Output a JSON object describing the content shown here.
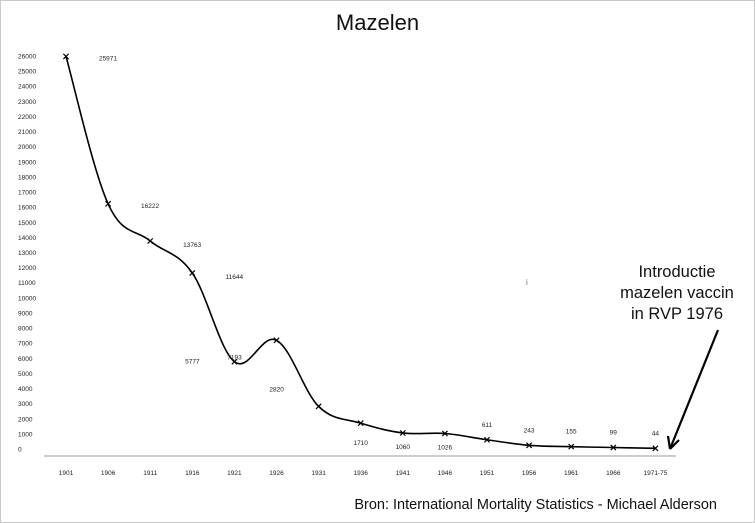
{
  "chart_data": {
    "type": "line",
    "title": "Mazelen",
    "categories": [
      "1901",
      "1906",
      "1911",
      "1916",
      "1921",
      "1926",
      "1931",
      "1936",
      "1941",
      "1946",
      "1951",
      "1956",
      "1961",
      "1966",
      "1971-75"
    ],
    "values": [
      25971,
      16222,
      13763,
      11644,
      5777,
      7193,
      2820,
      1710,
      1060,
      1026,
      611,
      243,
      155,
      99,
      44
    ],
    "point_labels": [
      "25971",
      "16222",
      "13763",
      "11644",
      "5777",
      "7193",
      "2820",
      "1710",
      "1060",
      "1026",
      "611",
      "243",
      "155",
      "99",
      "44"
    ],
    "y_ticks": [
      "0",
      "1000",
      "2000",
      "3000",
      "4000",
      "5000",
      "6000",
      "7000",
      "8000",
      "9000",
      "10000",
      "11000",
      "12000",
      "13000",
      "14000",
      "15000",
      "16000",
      "17000",
      "18000",
      "19000",
      "20000",
      "21000",
      "22000",
      "23000",
      "24000",
      "25000",
      "26000"
    ],
    "ylim": [
      0,
      26000
    ],
    "grid": false,
    "marker": "x",
    "line_color": "#000000",
    "annotation_lines": [
      "Introductie",
      "mazelen vaccin",
      "in RVP 1976"
    ],
    "source": "Bron: International Mortality Statistics - Michael Alderson",
    "stray_mark": "i"
  }
}
